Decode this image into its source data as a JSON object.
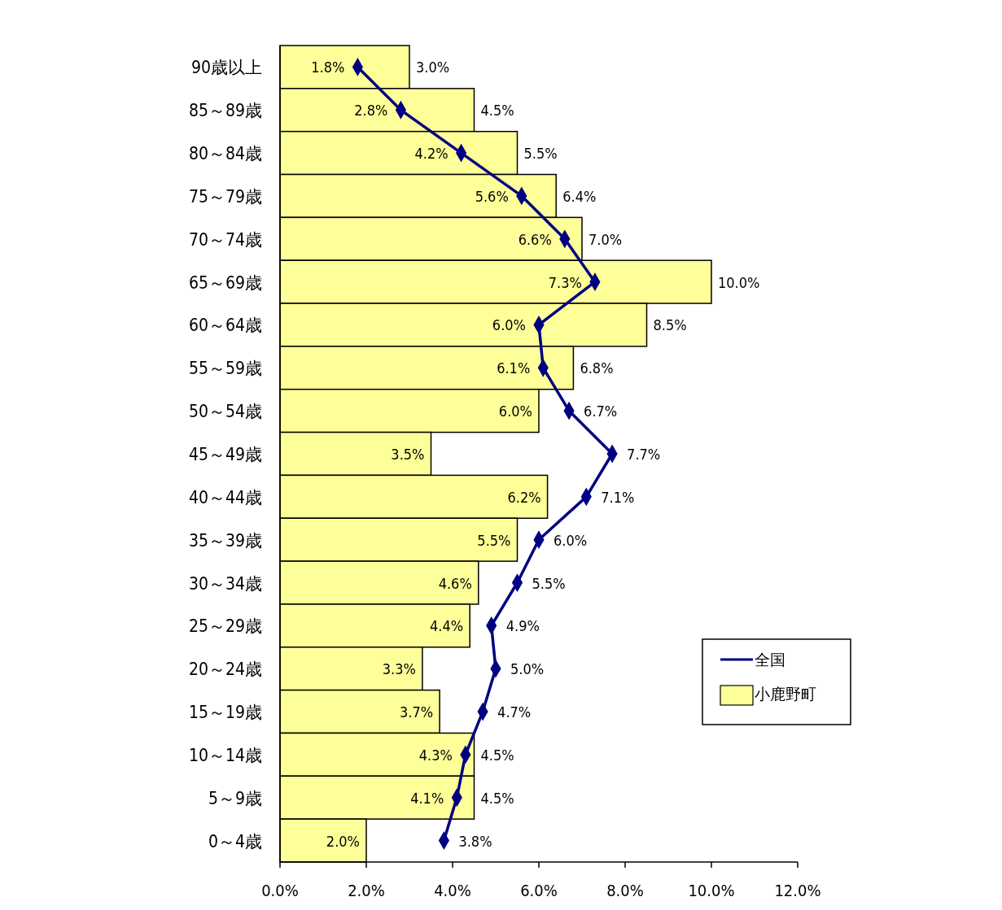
{
  "chart_data": {
    "type": "bar",
    "orientation": "horizontal",
    "categories": [
      "90歳以上",
      "85～89歳",
      "80～84歳",
      "75～79歳",
      "70～74歳",
      "65～69歳",
      "60～64歳",
      "55～59歳",
      "50～54歳",
      "45～49歳",
      "40～44歳",
      "35～39歳",
      "30～34歳",
      "25～29歳",
      "20～24歳",
      "15～19歳",
      "10～14歳",
      "5～9歳",
      "0～4歳"
    ],
    "series": [
      {
        "name": "小鹿野町",
        "color": "#ffff99",
        "values": [
          3.0,
          4.5,
          5.5,
          6.4,
          7.0,
          10.0,
          8.5,
          6.8,
          6.0,
          3.5,
          6.2,
          5.5,
          4.6,
          4.4,
          3.3,
          3.7,
          4.5,
          4.5,
          2.0
        ],
        "value_labels": [
          "3.0%",
          "4.5%",
          "5.5%",
          "6.4%",
          "7.0%",
          "10.0%",
          "8.5%",
          "6.8%",
          "6.0%",
          "3.5%",
          "6.2%",
          "5.5%",
          "4.6%",
          "4.4%",
          "3.3%",
          "3.7%",
          "4.5%",
          "4.5%",
          "2.0%"
        ]
      },
      {
        "name": "全国",
        "type": "line",
        "color": "#000080",
        "values": [
          1.8,
          2.8,
          4.2,
          5.6,
          6.6,
          7.3,
          6.0,
          6.1,
          6.7,
          7.7,
          7.1,
          6.0,
          5.5,
          4.9,
          5.0,
          4.7,
          4.3,
          4.1,
          3.8
        ],
        "value_labels": [
          "1.8%",
          "2.8%",
          "4.2%",
          "5.6%",
          "6.6%",
          "7.3%",
          "6.0%",
          "6.1%",
          "6.7%",
          "7.7%",
          "7.1%",
          "6.0%",
          "5.5%",
          "4.9%",
          "5.0%",
          "4.7%",
          "4.3%",
          "4.1%",
          "3.8%"
        ]
      }
    ],
    "xlim": [
      0,
      12
    ],
    "xticks": [
      {
        "value": 0,
        "label": "0.0%"
      },
      {
        "value": 2,
        "label": "2.0%"
      },
      {
        "value": 4,
        "label": "4.0%"
      },
      {
        "value": 6,
        "label": "6.0%"
      },
      {
        "value": 8,
        "label": "8.0%"
      },
      {
        "value": 10,
        "label": "10.0%"
      },
      {
        "value": 12,
        "label": "12.0%"
      }
    ],
    "marker": "diamond",
    "legend": "bottom right",
    "grid": false
  }
}
